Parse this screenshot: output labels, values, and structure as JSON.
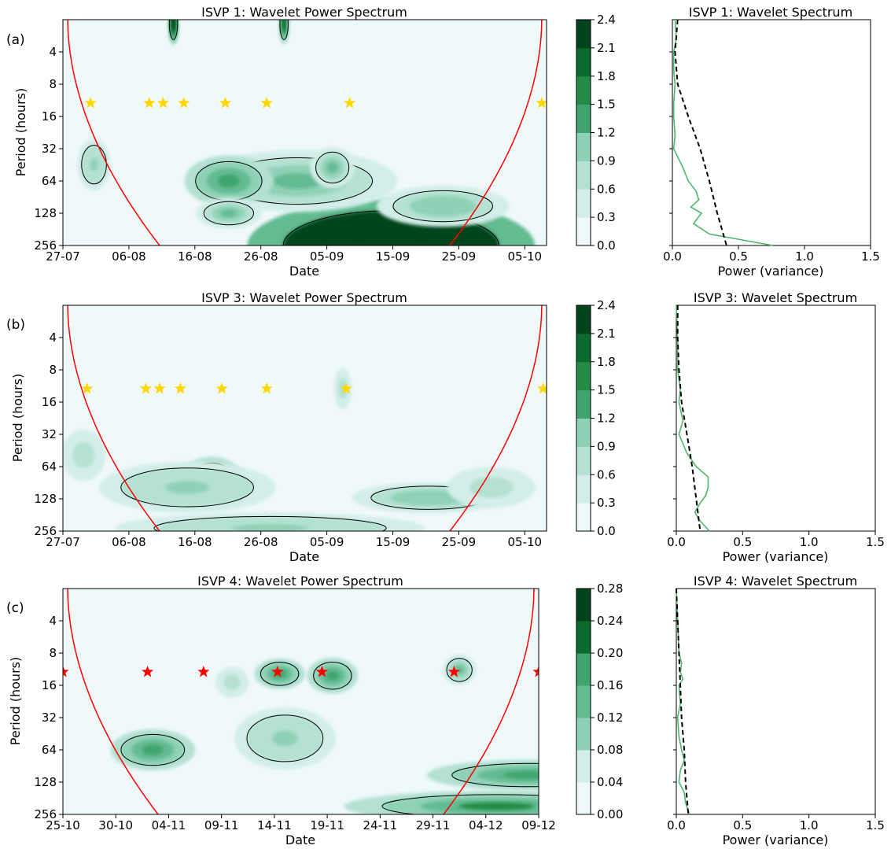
{
  "colors": {
    "levels": [
      "#f0f9fa",
      "#d3eee8",
      "#b4e1d3",
      "#8fd1b6",
      "#63bb92",
      "#3fa46e",
      "#238b45",
      "#0b6a2e",
      "#00441b"
    ],
    "coi": "#ff0000",
    "spectrum": "#4cb86c",
    "significance": "#000000",
    "star_yellow": "#ffd700",
    "star_red": "#ff0000"
  },
  "chart_data": [
    {
      "id": "a",
      "panel_label": "(a)",
      "type": "heatmap",
      "title": "ISVP 1: Wavelet Power Spectrum",
      "xlabel": "Date",
      "ylabel": "Period (hours)",
      "x_ticks": [
        "27-07",
        "06-08",
        "16-08",
        "26-08",
        "05-09",
        "15-09",
        "25-09",
        "05-10"
      ],
      "x_range_days": [
        0,
        70
      ],
      "y_ticks": [
        "4",
        "8",
        "16",
        "32",
        "64",
        "128",
        "256"
      ],
      "y_scale": "log2",
      "ylim": [
        2,
        256
      ],
      "colorbar": {
        "ticks": [
          "0.0",
          "0.3",
          "0.6",
          "0.9",
          "1.2",
          "1.5",
          "1.8",
          "2.1",
          "2.4"
        ],
        "range": [
          0,
          2.4
        ]
      },
      "stars": {
        "color": "yellow",
        "period": 12,
        "days": [
          4,
          12.5,
          14.5,
          17.5,
          23.5,
          29.5,
          41.5,
          69.3
        ]
      },
      "blobs": [
        {
          "day": 47.5,
          "period": 256,
          "sx": 13,
          "sy": 0.9,
          "level": 4.4
        },
        {
          "day": 34,
          "period": 64,
          "sx": 9,
          "sy": 0.6,
          "level": 0.9
        },
        {
          "day": 24,
          "period": 64,
          "sx": 4,
          "sy": 0.5,
          "level": 1.4
        },
        {
          "day": 24,
          "period": 128,
          "sx": 3,
          "sy": 0.3,
          "level": 1.0
        },
        {
          "day": 39,
          "period": 48,
          "sx": 2,
          "sy": 0.4,
          "level": 1.1
        },
        {
          "day": 4.5,
          "period": 45,
          "sx": 1.5,
          "sy": 0.5,
          "level": 0.7
        },
        {
          "day": 55,
          "period": 110,
          "sx": 6,
          "sy": 0.4,
          "level": 0.8
        },
        {
          "day": 16,
          "period": 2.2,
          "sx": 0.5,
          "sy": 0.4,
          "level": 2.5
        },
        {
          "day": 32,
          "period": 2.2,
          "sx": 0.5,
          "sy": 0.4,
          "level": 2.0
        }
      ],
      "spectrum_panel": {
        "title": "ISVP 1: Wavelet Spectrum",
        "xlabel": "Power (variance)",
        "x_ticks": [
          "0.0",
          "0.5",
          "1.0",
          "1.5"
        ],
        "xlim": [
          0,
          1.5
        ],
        "power_period": [
          2,
          3,
          4,
          6,
          8,
          12,
          16,
          24,
          32,
          48,
          64,
          80,
          96,
          112,
          128,
          160,
          200,
          256
        ],
        "power_values": [
          0.02,
          0.03,
          0.01,
          0.01,
          0.02,
          0.01,
          0.01,
          0.02,
          0.01,
          0.08,
          0.12,
          0.18,
          0.2,
          0.14,
          0.22,
          0.16,
          0.28,
          0.76
        ],
        "signif_period": [
          2,
          4,
          8,
          16,
          32,
          64,
          128,
          256
        ],
        "signif_values": [
          0.04,
          0.02,
          0.04,
          0.12,
          0.21,
          0.28,
          0.34,
          0.41
        ]
      }
    },
    {
      "id": "b",
      "panel_label": "(b)",
      "type": "heatmap",
      "title": "ISVP 3: Wavelet Power Spectrum",
      "xlabel": "Date",
      "ylabel": "Period (hours)",
      "x_ticks": [
        "27-07",
        "06-08",
        "16-08",
        "26-08",
        "05-09",
        "15-09",
        "25-09",
        "05-10"
      ],
      "x_range_days": [
        0,
        70
      ],
      "y_ticks": [
        "4",
        "8",
        "16",
        "32",
        "64",
        "128",
        "256"
      ],
      "y_scale": "log2",
      "ylim": [
        2,
        256
      ],
      "colorbar": {
        "ticks": [
          "0.0",
          "0.3",
          "0.6",
          "0.9",
          "1.2",
          "1.5",
          "1.8",
          "2.1",
          "2.4"
        ],
        "range": [
          0,
          2.4
        ]
      },
      "stars": {
        "color": "yellow",
        "period": 12,
        "days": [
          3.5,
          12,
          14,
          17,
          23,
          29.5,
          41,
          69.5
        ]
      },
      "blobs": [
        {
          "day": 21.5,
          "period": 90,
          "sx": 3,
          "sy": 0.5,
          "level": 1.3
        },
        {
          "day": 18,
          "period": 100,
          "sx": 8,
          "sy": 0.5,
          "level": 0.7
        },
        {
          "day": 30,
          "period": 240,
          "sx": 14,
          "sy": 0.3,
          "level": 0.7
        },
        {
          "day": 53,
          "period": 125,
          "sx": 7,
          "sy": 0.3,
          "level": 0.8
        },
        {
          "day": 62,
          "period": 100,
          "sx": 4,
          "sy": 0.4,
          "level": 0.5
        },
        {
          "day": 3,
          "period": 50,
          "sx": 2,
          "sy": 0.5,
          "level": 0.5
        },
        {
          "day": 40.5,
          "period": 12,
          "sx": 0.8,
          "sy": 0.4,
          "level": 0.4
        }
      ],
      "spectrum_panel": {
        "title": "ISVP 3: Wavelet Spectrum",
        "xlabel": "Power (variance)",
        "x_ticks": [
          "0.0",
          "0.5",
          "1.0",
          "1.5"
        ],
        "xlim": [
          0,
          1.5
        ],
        "power_period": [
          2,
          4,
          8,
          12,
          16,
          24,
          32,
          48,
          64,
          80,
          100,
          120,
          140,
          170,
          200,
          256
        ],
        "power_values": [
          0.0,
          0.01,
          0.01,
          0.03,
          0.02,
          0.05,
          0.02,
          0.08,
          0.15,
          0.24,
          0.24,
          0.22,
          0.18,
          0.14,
          0.17,
          0.25
        ],
        "signif_period": [
          2,
          4,
          8,
          16,
          32,
          64,
          128,
          256
        ],
        "signif_values": [
          0.01,
          0.01,
          0.02,
          0.04,
          0.08,
          0.12,
          0.15,
          0.18
        ]
      }
    },
    {
      "id": "c",
      "panel_label": "(c)",
      "type": "heatmap",
      "title": "ISVP 4: Wavelet Power Spectrum",
      "xlabel": "Date",
      "ylabel": "Period (hours)",
      "x_ticks": [
        "25-10",
        "30-10",
        "04-11",
        "09-11",
        "14-11",
        "19-11",
        "24-11",
        "29-11",
        "04-12",
        "09-12"
      ],
      "x_range_days": [
        0,
        45
      ],
      "y_ticks": [
        "4",
        "8",
        "16",
        "32",
        "64",
        "128",
        "256"
      ],
      "y_scale": "log2",
      "ylim": [
        2,
        256
      ],
      "colorbar": {
        "ticks": [
          "0.00",
          "0.04",
          "0.08",
          "0.12",
          "0.16",
          "0.20",
          "0.24",
          "0.28"
        ],
        "range": [
          0,
          0.28
        ]
      },
      "stars": {
        "color": "red",
        "period": 12,
        "days": [
          0,
          8,
          13.3,
          20.3,
          24.5,
          37,
          50.8
        ]
      },
      "blobs": [
        {
          "day": 8.5,
          "period": 64,
          "sx": 2.5,
          "sy": 0.4,
          "level": 0.17
        },
        {
          "day": 20.5,
          "period": 12.5,
          "sx": 1.5,
          "sy": 0.3,
          "level": 0.16
        },
        {
          "day": 25.5,
          "period": 13,
          "sx": 1.5,
          "sy": 0.35,
          "level": 0.15
        },
        {
          "day": 37.5,
          "period": 11.5,
          "sx": 1,
          "sy": 0.3,
          "level": 0.12
        },
        {
          "day": 49.3,
          "period": 24,
          "sx": 0.9,
          "sy": 1.0,
          "level": 0.14
        },
        {
          "day": 44,
          "period": 110,
          "sx": 6,
          "sy": 0.3,
          "level": 0.14
        },
        {
          "day": 41,
          "period": 215,
          "sx": 9,
          "sy": 0.3,
          "level": 0.18
        },
        {
          "day": 21,
          "period": 50,
          "sx": 3,
          "sy": 0.6,
          "level": 0.08
        },
        {
          "day": 16,
          "period": 15,
          "sx": 1,
          "sy": 0.3,
          "level": 0.06
        }
      ],
      "spectrum_panel": {
        "title": "ISVP 4: Wavelet Spectrum",
        "xlabel": "Power (variance)",
        "x_ticks": [
          "0.0",
          "0.5",
          "1.0",
          "1.5"
        ],
        "xlim": [
          0,
          1.5
        ],
        "power_period": [
          2,
          4,
          8,
          10,
          12,
          14,
          16,
          24,
          32,
          48,
          64,
          80,
          100,
          128,
          160,
          200,
          256
        ],
        "power_values": [
          0.0,
          0.01,
          0.02,
          0.04,
          0.03,
          0.05,
          0.02,
          0.03,
          0.01,
          0.02,
          0.04,
          0.06,
          0.03,
          0.02,
          0.06,
          0.07,
          0.1
        ],
        "signif_period": [
          2,
          4,
          8,
          16,
          32,
          64,
          128,
          256
        ],
        "signif_values": [
          0.0,
          0.01,
          0.02,
          0.03,
          0.04,
          0.06,
          0.07,
          0.09
        ]
      }
    }
  ]
}
